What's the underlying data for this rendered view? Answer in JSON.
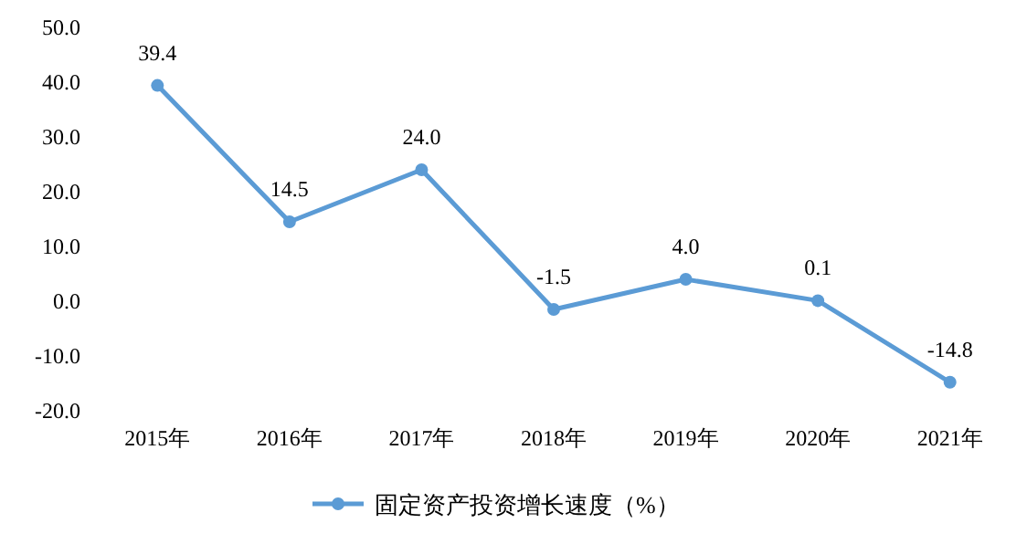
{
  "chart_data": {
    "type": "line",
    "categories": [
      "2015年",
      "2016年",
      "2017年",
      "2018年",
      "2019年",
      "2020年",
      "2021年"
    ],
    "series": [
      {
        "name": "固定资产投资增长速度（%）",
        "color": "#5b9bd5",
        "values": [
          39.4,
          14.5,
          24.0,
          -1.5,
          4.0,
          0.1,
          -14.8
        ],
        "value_labels": [
          "39.4",
          "14.5",
          "24.0",
          "-1.5",
          "4.0",
          "0.1",
          "-14.8"
        ]
      }
    ],
    "ylim": [
      -20,
      50
    ],
    "yticks": [
      {
        "value": -20,
        "label": "-20.0"
      },
      {
        "value": -10,
        "label": "-10.0"
      },
      {
        "value": 0,
        "label": "0.0"
      },
      {
        "value": 10,
        "label": "10.0"
      },
      {
        "value": 20,
        "label": "20.0"
      },
      {
        "value": 30,
        "label": "30.0"
      },
      {
        "value": 40,
        "label": "40.0"
      },
      {
        "value": 50,
        "label": "50.0"
      }
    ],
    "marker": "circle",
    "line_style": "solid",
    "legend": "bottom"
  }
}
